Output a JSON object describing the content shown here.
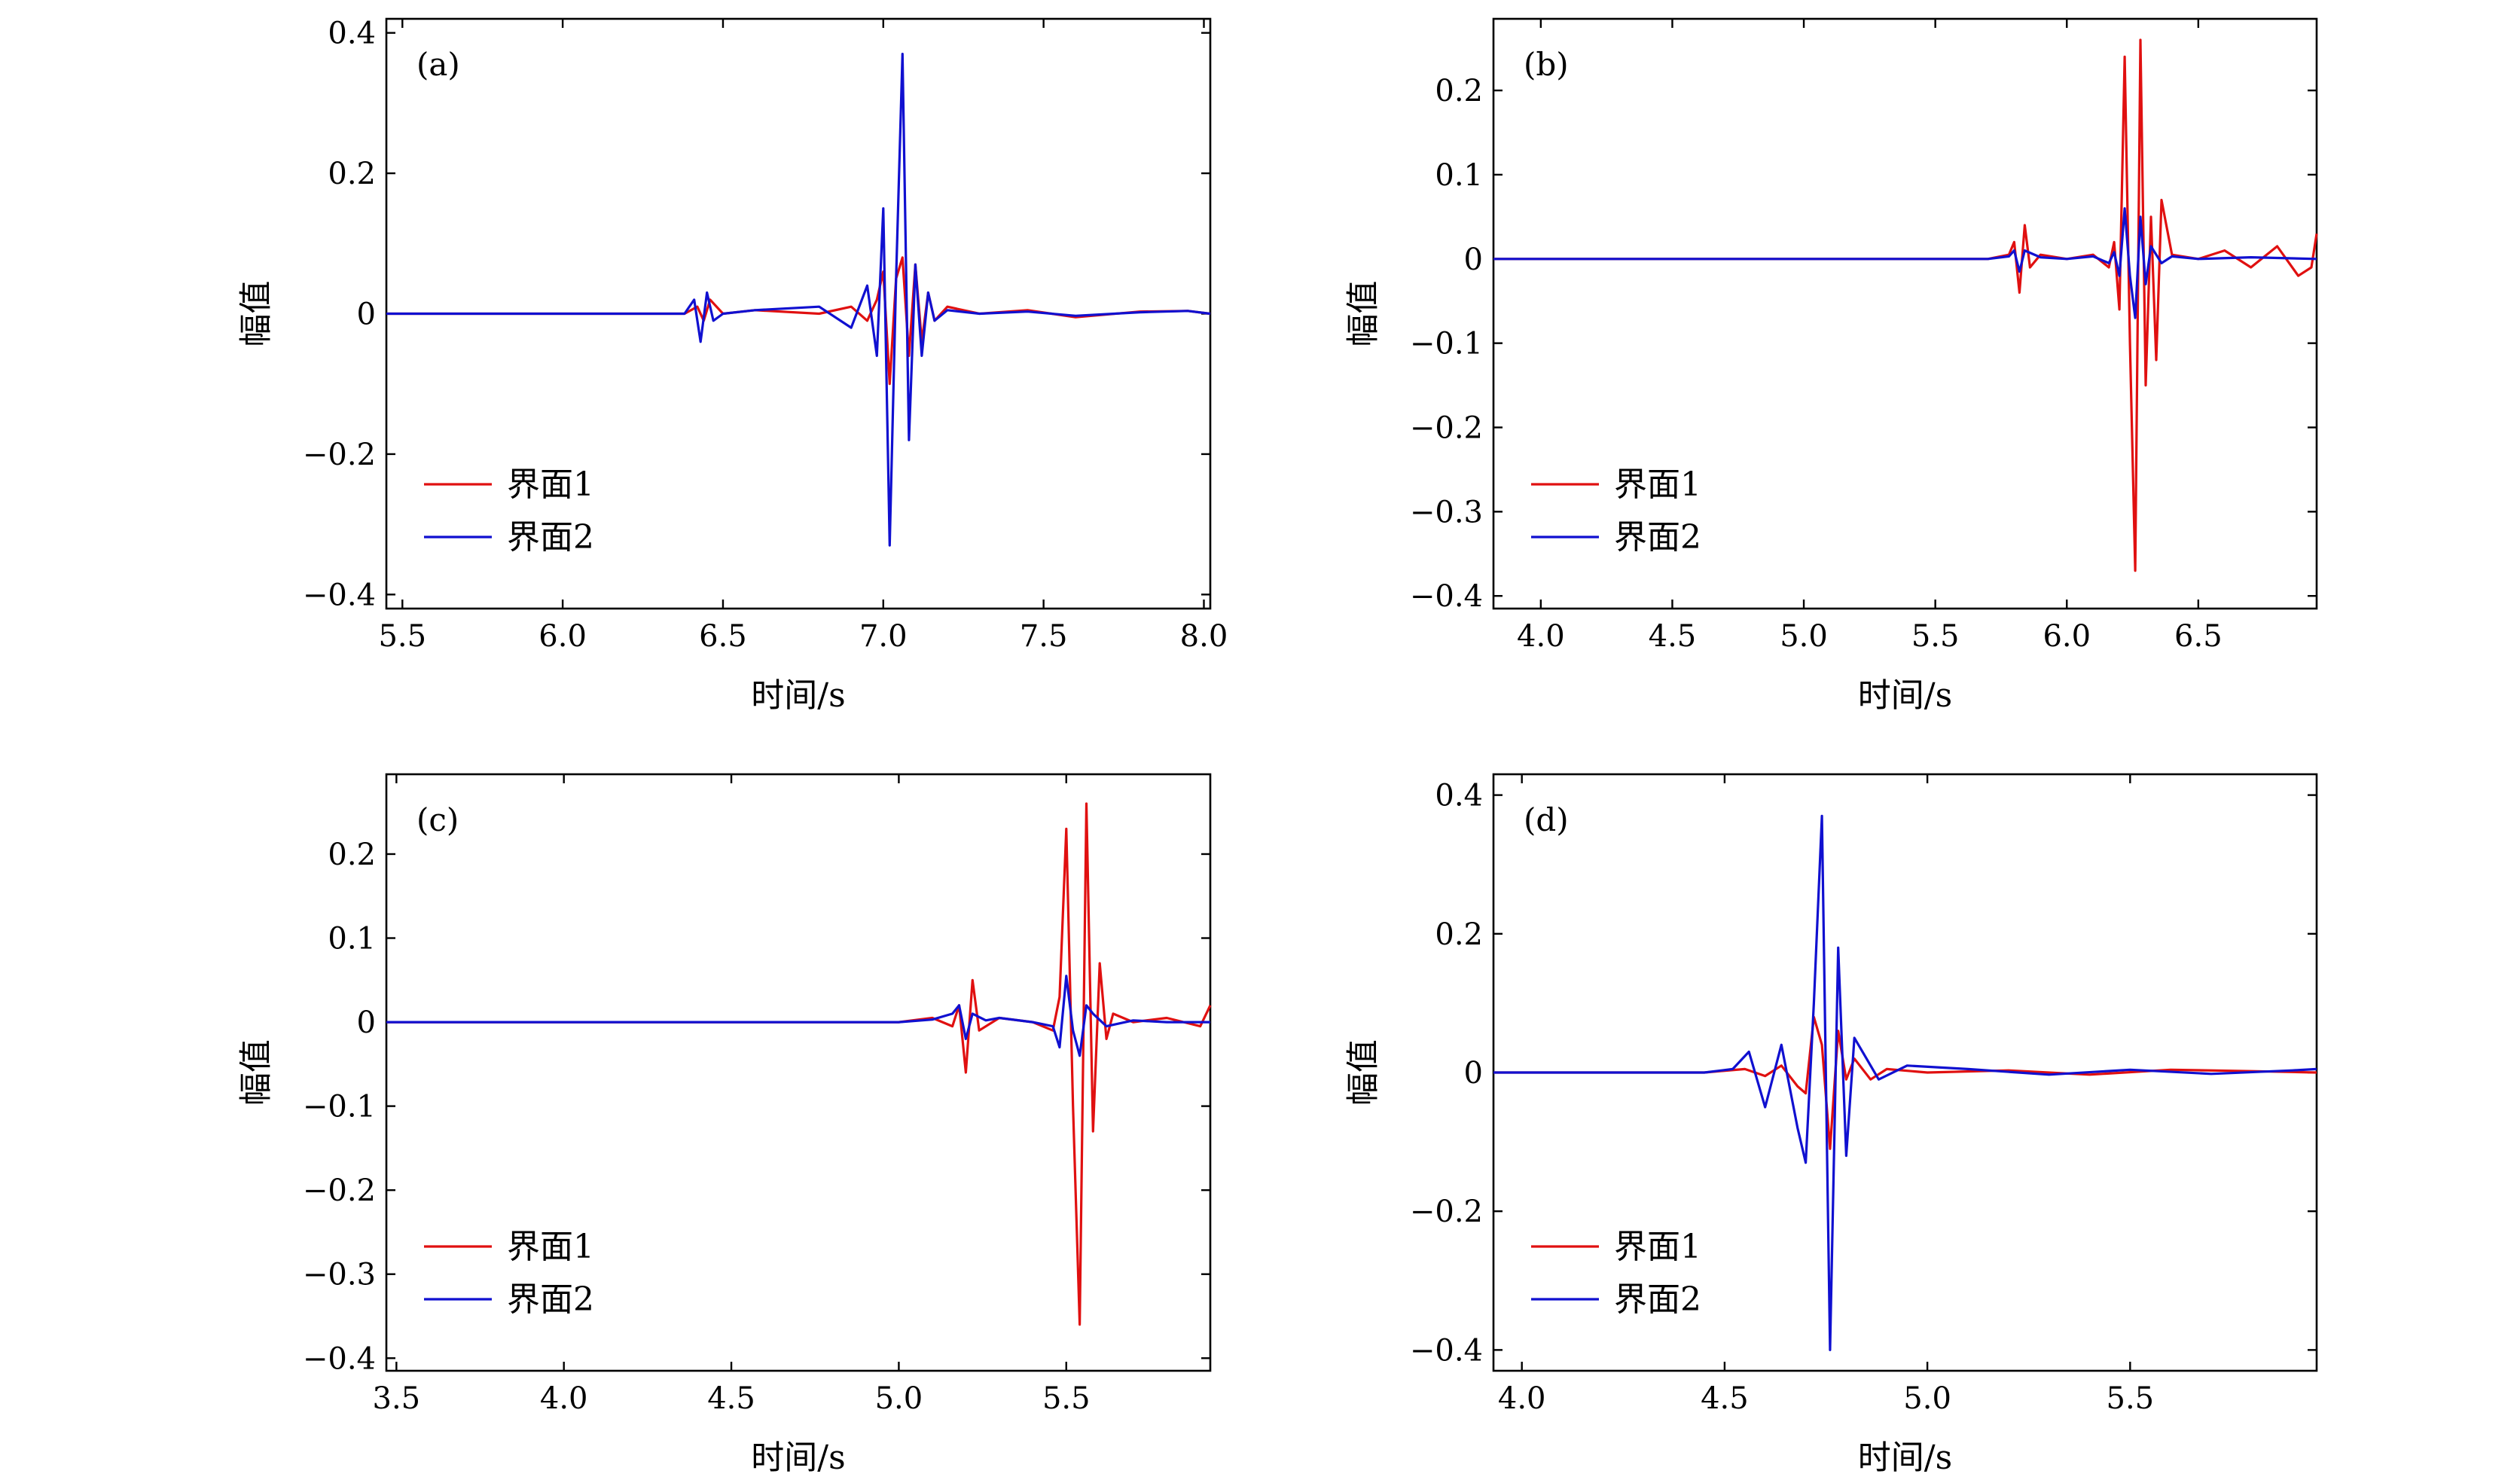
{
  "chart_data": [
    {
      "type": "line",
      "panel_label": "(a)",
      "xlabel": "时间/s",
      "ylabel": "幅值",
      "xlim": [
        5.45,
        8.02
      ],
      "ylim": [
        -0.42,
        0.42
      ],
      "xticks": [
        5.5,
        6.0,
        6.5,
        7.0,
        7.5,
        8.0
      ],
      "xtick_labels": [
        "5.5",
        "6.0",
        "6.5",
        "7.0",
        "7.5",
        "8.0"
      ],
      "yticks": [
        -0.4,
        -0.2,
        0,
        0.2,
        0.4
      ],
      "ytick_labels": [
        "−0.4",
        "−0.2",
        "0",
        "0.2",
        "0.4"
      ],
      "legend_position": "bottom-left",
      "series": [
        {
          "name": "界面1",
          "color": "#e01010",
          "x": [
            5.45,
            6.38,
            6.42,
            6.44,
            6.46,
            6.5,
            6.6,
            6.8,
            6.9,
            6.95,
            6.98,
            7.0,
            7.02,
            7.04,
            7.06,
            7.08,
            7.1,
            7.12,
            7.14,
            7.16,
            7.2,
            7.3,
            7.45,
            7.6,
            7.8,
            7.95,
            8.02
          ],
          "y": [
            0,
            0,
            0.01,
            -0.01,
            0.02,
            0,
            0.005,
            0,
            0.01,
            -0.01,
            0.02,
            0.06,
            -0.1,
            0.05,
            0.08,
            -0.06,
            0.07,
            -0.04,
            0.03,
            -0.01,
            0.01,
            0,
            0.005,
            -0.005,
            0.003,
            0.004,
            0
          ]
        },
        {
          "name": "界面2",
          "color": "#1010d0",
          "x": [
            5.45,
            6.38,
            6.41,
            6.43,
            6.45,
            6.47,
            6.5,
            6.6,
            6.8,
            6.9,
            6.95,
            6.98,
            7.0,
            7.02,
            7.04,
            7.06,
            7.08,
            7.1,
            7.12,
            7.14,
            7.16,
            7.2,
            7.3,
            7.45,
            7.6,
            7.8,
            7.95,
            8.02
          ],
          "y": [
            0,
            0,
            0.02,
            -0.04,
            0.03,
            -0.01,
            0,
            0.005,
            0.01,
            -0.02,
            0.04,
            -0.06,
            0.15,
            -0.33,
            0.05,
            0.37,
            -0.18,
            0.07,
            -0.06,
            0.03,
            -0.01,
            0.005,
            0,
            0.003,
            -0.003,
            0.002,
            0.004,
            0
          ]
        }
      ]
    },
    {
      "type": "line",
      "panel_label": "(b)",
      "xlabel": "时间/s",
      "ylabel": "幅值",
      "xlim": [
        3.82,
        6.95
      ],
      "ylim": [
        -0.415,
        0.285
      ],
      "xticks": [
        4.0,
        4.5,
        5.0,
        5.5,
        6.0,
        6.5
      ],
      "xtick_labels": [
        "4.0",
        "4.5",
        "5.0",
        "5.5",
        "6.0",
        "6.5"
      ],
      "yticks": [
        -0.4,
        -0.3,
        -0.2,
        -0.1,
        0,
        0.1,
        0.2
      ],
      "ytick_labels": [
        "−0.4",
        "−0.3",
        "−0.2",
        "−0.1",
        "0",
        "0.1",
        "0.2"
      ],
      "legend_position": "bottom-left",
      "series": [
        {
          "name": "界面1",
          "color": "#e01010",
          "x": [
            3.82,
            5.7,
            5.78,
            5.8,
            5.82,
            5.84,
            5.86,
            5.9,
            6.0,
            6.1,
            6.16,
            6.18,
            6.2,
            6.22,
            6.24,
            6.26,
            6.28,
            6.3,
            6.32,
            6.34,
            6.36,
            6.4,
            6.5,
            6.6,
            6.7,
            6.8,
            6.88,
            6.93,
            6.95
          ],
          "y": [
            0,
            0,
            0.005,
            0.02,
            -0.04,
            0.04,
            -0.01,
            0.005,
            0,
            0.005,
            -0.01,
            0.02,
            -0.06,
            0.24,
            -0.1,
            -0.37,
            0.26,
            -0.15,
            0.05,
            -0.12,
            0.07,
            0.005,
            0,
            0.01,
            -0.01,
            0.015,
            -0.02,
            -0.01,
            0.03
          ]
        },
        {
          "name": "界面2",
          "color": "#1010d0",
          "x": [
            3.82,
            5.7,
            5.78,
            5.8,
            5.82,
            5.84,
            5.9,
            6.0,
            6.1,
            6.16,
            6.18,
            6.2,
            6.22,
            6.24,
            6.26,
            6.28,
            6.3,
            6.32,
            6.36,
            6.4,
            6.5,
            6.7,
            6.95
          ],
          "y": [
            0,
            0,
            0.003,
            0.01,
            -0.015,
            0.01,
            0.002,
            0,
            0.003,
            -0.005,
            0.008,
            -0.02,
            0.06,
            -0.02,
            -0.07,
            0.05,
            -0.03,
            0.015,
            -0.005,
            0.003,
            0,
            0.002,
            0
          ]
        }
      ]
    },
    {
      "type": "line",
      "panel_label": "(c)",
      "xlabel": "时间/s",
      "ylabel": "幅值",
      "xlim": [
        3.47,
        5.93
      ],
      "ylim": [
        -0.415,
        0.295
      ],
      "xticks": [
        3.5,
        4.0,
        4.5,
        5.0,
        5.5
      ],
      "xtick_labels": [
        "3.5",
        "4.0",
        "4.5",
        "5.0",
        "5.5"
      ],
      "yticks": [
        -0.4,
        -0.3,
        -0.2,
        -0.1,
        0,
        0.1,
        0.2
      ],
      "ytick_labels": [
        "−0.4",
        "−0.3",
        "−0.2",
        "−0.1",
        "0",
        "0.1",
        "0.2"
      ],
      "legend_position": "bottom-left",
      "series": [
        {
          "name": "界面1",
          "color": "#e01010",
          "x": [
            3.47,
            5.0,
            5.1,
            5.16,
            5.18,
            5.2,
            5.22,
            5.24,
            5.3,
            5.4,
            5.46,
            5.48,
            5.5,
            5.52,
            5.54,
            5.56,
            5.58,
            5.6,
            5.62,
            5.64,
            5.7,
            5.8,
            5.9,
            5.93
          ],
          "y": [
            0,
            0,
            0.005,
            -0.005,
            0.02,
            -0.06,
            0.05,
            -0.01,
            0.005,
            0,
            -0.01,
            0.03,
            0.23,
            -0.1,
            -0.36,
            0.26,
            -0.13,
            0.07,
            -0.02,
            0.01,
            0,
            0.005,
            -0.005,
            0.02
          ]
        },
        {
          "name": "界面2",
          "color": "#1010d0",
          "x": [
            3.47,
            5.0,
            5.1,
            5.16,
            5.18,
            5.2,
            5.22,
            5.26,
            5.3,
            5.4,
            5.46,
            5.48,
            5.5,
            5.52,
            5.54,
            5.56,
            5.58,
            5.62,
            5.7,
            5.8,
            5.93
          ],
          "y": [
            0,
            0,
            0.003,
            0.01,
            0.02,
            -0.02,
            0.01,
            0.002,
            0.005,
            0,
            -0.005,
            -0.03,
            0.055,
            -0.01,
            -0.04,
            0.02,
            0.01,
            -0.005,
            0.002,
            0,
            0
          ]
        }
      ]
    },
    {
      "type": "line",
      "panel_label": "(d)",
      "xlabel": "时间/s",
      "ylabel": "幅值",
      "xlim": [
        3.93,
        5.96
      ],
      "ylim": [
        -0.43,
        0.43
      ],
      "xticks": [
        4.0,
        4.5,
        5.0,
        5.5
      ],
      "xtick_labels": [
        "4.0",
        "4.5",
        "5.0",
        "5.5"
      ],
      "yticks": [
        -0.4,
        -0.2,
        0,
        0.2,
        0.4
      ],
      "ytick_labels": [
        "−0.4",
        "−0.2",
        "0",
        "0.2",
        "0.4"
      ],
      "legend_position": "bottom-left",
      "series": [
        {
          "name": "界面1",
          "color": "#e01010",
          "x": [
            3.93,
            4.45,
            4.55,
            4.6,
            4.64,
            4.68,
            4.7,
            4.72,
            4.74,
            4.76,
            4.78,
            4.8,
            4.82,
            4.86,
            4.9,
            5.0,
            5.2,
            5.4,
            5.6,
            5.8,
            5.96
          ],
          "y": [
            0,
            0,
            0.005,
            -0.005,
            0.01,
            -0.02,
            -0.03,
            0.08,
            0.04,
            -0.11,
            0.06,
            -0.01,
            0.02,
            -0.01,
            0.005,
            0,
            0.003,
            -0.003,
            0.004,
            0.002,
            0
          ]
        },
        {
          "name": "界面2",
          "color": "#1010d0",
          "x": [
            3.93,
            4.45,
            4.52,
            4.56,
            4.6,
            4.64,
            4.68,
            4.7,
            4.72,
            4.74,
            4.76,
            4.78,
            4.8,
            4.82,
            4.84,
            4.88,
            4.95,
            5.1,
            5.3,
            5.5,
            5.7,
            5.9,
            5.96
          ],
          "y": [
            0,
            0,
            0.005,
            0.03,
            -0.05,
            0.04,
            -0.08,
            -0.13,
            0.1,
            0.37,
            -0.4,
            0.18,
            -0.12,
            0.05,
            0.03,
            -0.01,
            0.01,
            0.005,
            -0.003,
            0.004,
            -0.002,
            0.003,
            0.005
          ]
        }
      ]
    }
  ]
}
